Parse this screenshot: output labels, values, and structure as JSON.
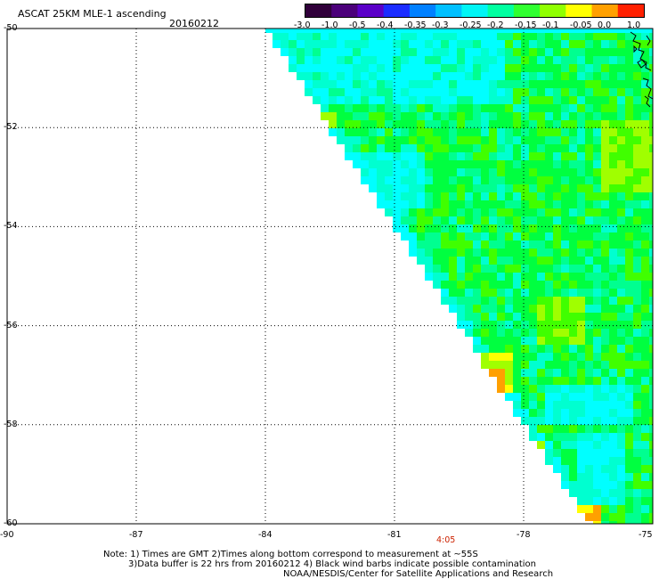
{
  "header": {
    "title": "ASCAT 25KM MLE-1 ascending",
    "date": "20160212"
  },
  "colorbar": {
    "labels": [
      "-3.0",
      "-1.0",
      "-0.5",
      "-0.4",
      "-0.35",
      "-0.3",
      "-0.25",
      "-0.2",
      "-0.15",
      "-0.1",
      "-0.05",
      "0.0",
      "1.0"
    ],
    "colors": [
      "#30003a",
      "#4b007a",
      "#5a00c8",
      "#1b2cff",
      "#0080ff",
      "#00c0ff",
      "#00f5f5",
      "#00ffa0",
      "#30ff30",
      "#90ff00",
      "#ffff00",
      "#ffa000",
      "#ff2000"
    ]
  },
  "map": {
    "lat_labels": [
      "-50",
      "-52",
      "-54",
      "-56",
      "-58",
      "-60"
    ],
    "lon_labels": [
      "-90",
      "-87",
      "-84",
      "-81",
      "-78",
      "-75"
    ],
    "lat_range": [
      -60,
      -50
    ],
    "lon_range": [
      -90,
      -75
    ],
    "grid": true,
    "palette": {
      "cyan": "#00ffff",
      "aqua": "#00ffd0",
      "seafoam": "#00ff90",
      "green": "#00ff40",
      "lime": "#40ff00",
      "yellowgreen": "#a0ff00",
      "yellow": "#ffff00",
      "orange": "#ffa000",
      "blue": "#0090ff"
    },
    "time_label": "4:05"
  },
  "notes": {
    "line1": "Note: 1) Times are GMT 2)Times along bottom correspond to measurement at ~55S",
    "line2": "3)Data buffer is 22 hrs from 20160212 4) Black wind barbs indicate possible contamination",
    "line3": "NOAA/NESDIS/Center for Satellite Applications and Research"
  }
}
